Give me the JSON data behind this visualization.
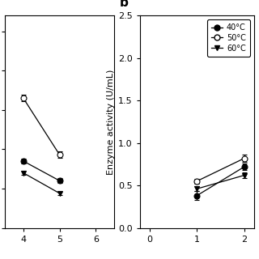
{
  "panel_a": {
    "x": [
      4,
      5
    ],
    "series": [
      {
        "name": "40°C",
        "marker": "o",
        "filled": true,
        "y": [
          0.85,
          0.6
        ],
        "yerr": [
          0.03,
          0.03
        ]
      },
      {
        "name": "50°C",
        "marker": "o",
        "filled": false,
        "y": [
          1.65,
          0.93
        ],
        "yerr": [
          0.04,
          0.04
        ]
      },
      {
        "name": "60°C",
        "marker": "v",
        "filled": true,
        "y": [
          0.7,
          0.44
        ],
        "yerr": [
          0.03,
          0.02
        ]
      }
    ],
    "xlim": [
      3.5,
      6.5
    ],
    "ylim": [
      0.0,
      2.7
    ],
    "xticks": [
      4,
      5,
      6
    ],
    "clip_on": false
  },
  "panel_b": {
    "label": "b",
    "x": [
      1,
      2
    ],
    "series": [
      {
        "name": "40°C",
        "marker": "o",
        "filled": true,
        "y": [
          0.38,
          0.72
        ],
        "yerr": [
          0.05,
          0.04
        ]
      },
      {
        "name": "50°C",
        "marker": "o",
        "filled": false,
        "y": [
          0.55,
          0.82
        ],
        "yerr": [
          0.03,
          0.04
        ]
      },
      {
        "name": "60°C",
        "marker": "v",
        "filled": true,
        "y": [
          0.46,
          0.62
        ],
        "yerr": [
          0.03,
          0.03
        ]
      }
    ],
    "xlim": [
      -0.2,
      2.2
    ],
    "ylim": [
      0.0,
      2.5
    ],
    "xticks": [
      0,
      1,
      2
    ],
    "ytick_labels": [
      "0.0",
      "0.5",
      "1.0",
      "1.5",
      "2.0",
      "2.5"
    ],
    "yticks": [
      0.0,
      0.5,
      1.0,
      1.5,
      2.0,
      2.5
    ],
    "ylabel": "Enzyme activity (U/mL)"
  },
  "line_color": "black",
  "marker_size": 5,
  "capsize": 2,
  "elinewidth": 0.8,
  "linewidth": 0.9
}
